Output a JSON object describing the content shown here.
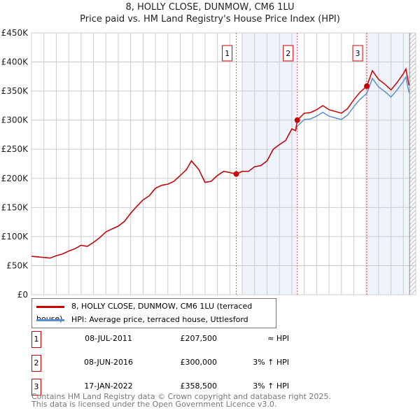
{
  "title": "8, HOLLY CLOSE, DUNMOW, CM6 1LU",
  "subtitle": "Price paid vs. HM Land Registry's House Price Index (HPI)",
  "chart_data": {
    "type": "line",
    "xlim": [
      1995,
      2026
    ],
    "ylim": [
      0,
      450000
    ],
    "yticks": [
      {
        "v": 0,
        "l": "£0"
      },
      {
        "v": 50000,
        "l": "£50K"
      },
      {
        "v": 100000,
        "l": "£100K"
      },
      {
        "v": 150000,
        "l": "£150K"
      },
      {
        "v": 200000,
        "l": "£200K"
      },
      {
        "v": 250000,
        "l": "£250K"
      },
      {
        "v": 300000,
        "l": "£300K"
      },
      {
        "v": 350000,
        "l": "£350K"
      },
      {
        "v": 400000,
        "l": "£400K"
      },
      {
        "v": 450000,
        "l": "£450K"
      }
    ],
    "xticks": [
      "1995",
      "1996",
      "1997",
      "1998",
      "1999",
      "2000",
      "2001",
      "2002",
      "2003",
      "2004",
      "2005",
      "2006",
      "2007",
      "2008",
      "2009",
      "2010",
      "2011",
      "2012",
      "2013",
      "2014",
      "2015",
      "2016",
      "2017",
      "2018",
      "2019",
      "2020",
      "2021",
      "2022",
      "2023",
      "2024",
      "2025",
      "2026"
    ],
    "series": [
      {
        "name": "8, HOLLY CLOSE, DUNMOW, CM6 1LU (terraced house)",
        "color": "#cc0000",
        "x": [
          1995,
          1995.5,
          1996,
          1996.5,
          1997,
          1997.5,
          1998,
          1998.5,
          1999,
          1999.5,
          2000,
          2000.5,
          2001,
          2001.5,
          2002,
          2002.5,
          2003,
          2003.5,
          2004,
          2004.5,
          2005,
          2005.5,
          2006,
          2006.5,
          2007,
          2007.5,
          2007.9,
          2008.5,
          2009,
          2009.5,
          2010,
          2010.5,
          2011,
          2011.52,
          2012,
          2012.5,
          2013,
          2013.5,
          2014,
          2014.5,
          2015,
          2015.5,
          2016,
          2016.3,
          2016.44,
          2017,
          2017.5,
          2018,
          2018.5,
          2019,
          2019.5,
          2020,
          2020.5,
          2021,
          2021.5,
          2022.05,
          2022.5,
          2023,
          2023.5,
          2024,
          2024.5,
          2025,
          2025.2,
          2025.45
        ],
        "y": [
          66,
          65,
          64,
          63,
          67,
          70,
          75,
          79,
          85,
          83,
          90,
          98,
          108,
          113,
          118,
          126,
          140,
          152,
          163,
          170,
          183,
          188,
          190,
          195,
          205,
          215,
          230,
          215,
          193,
          195,
          205,
          212,
          210,
          207.5,
          212,
          212,
          220,
          222,
          230,
          250,
          258,
          265,
          285,
          282,
          300,
          312,
          313,
          318,
          325,
          318,
          315,
          312,
          320,
          335,
          348,
          358.5,
          385,
          370,
          362,
          352,
          365,
          380,
          388,
          360
        ]
      },
      {
        "name": "HPI: Average price, terraced house, Uttlesford",
        "color": "#5b8fd0"
      }
    ],
    "sales": [
      {
        "n": "1",
        "x": 2011.52,
        "y": 207500
      },
      {
        "n": "2",
        "x": 2016.44,
        "y": 300000
      },
      {
        "n": "3",
        "x": 2022.05,
        "y": 358500
      }
    ],
    "shaded": [
      [
        2012,
        2016.44
      ],
      [
        2022.05,
        2025.5
      ]
    ],
    "forecast_from": 2025.5
  },
  "table": [
    {
      "n": "1",
      "date": "08-JUL-2011",
      "price": "£207,500",
      "hpi": "≈ HPI"
    },
    {
      "n": "2",
      "date": "08-JUN-2016",
      "price": "£300,000",
      "hpi": "3% ↑ HPI"
    },
    {
      "n": "3",
      "date": "17-JAN-2022",
      "price": "£358,500",
      "hpi": "3% ↑ HPI"
    }
  ],
  "footer": [
    "Contains HM Land Registry data © Crown copyright and database right 2025.",
    "This data is licensed under the Open Government Licence v3.0."
  ]
}
